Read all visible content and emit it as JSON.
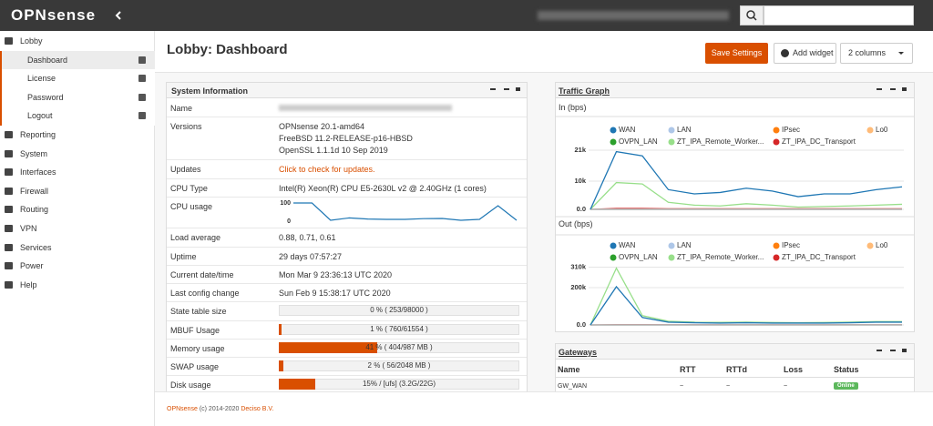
{
  "topbar": {
    "logo": "OPNsense"
  },
  "menu": {
    "active": "Dashboard",
    "items": [
      {
        "label": "Lobby",
        "children": [
          "Dashboard",
          "License",
          "Password",
          "Logout"
        ]
      },
      {
        "label": "Reporting"
      },
      {
        "label": "System"
      },
      {
        "label": "Interfaces"
      },
      {
        "label": "Firewall"
      },
      {
        "label": "Routing"
      },
      {
        "label": "VPN"
      },
      {
        "label": "Services"
      },
      {
        "label": "Power"
      },
      {
        "label": "Help"
      }
    ]
  },
  "header": {
    "title": "Lobby: Dashboard",
    "save": "Save Settings",
    "add": "Add widget",
    "columns": "2 columns"
  },
  "system_information": {
    "title": "System Information",
    "rows": [
      {
        "label": "Name"
      },
      {
        "label": "Versions",
        "lines": [
          "OPNsense 20.1-amd64",
          "FreeBSD 11.2-RELEASE-p16-HBSD",
          "OpenSSL 1.1.1d 10 Sep 2019"
        ]
      },
      {
        "label": "Updates",
        "link": "Click to check for updates."
      },
      {
        "label": "CPU Type",
        "value": "Intel(R) Xeon(R) CPU E5-2630L v2 @ 2.40GHz (1 cores)"
      },
      {
        "label": "CPU usage",
        "chart": {
          "type": "line",
          "ylim": [
            0,
            100
          ],
          "yticks": [
            0,
            100
          ],
          "color": "#1f77b4",
          "values": [
            100,
            100,
            5,
            18,
            12,
            10,
            10,
            14,
            15,
            5,
            10,
            85,
            5
          ]
        }
      },
      {
        "label": "Load average",
        "value": "0.88, 0.71, 0.61"
      },
      {
        "label": "Uptime",
        "value": "29 days 07:57:27"
      },
      {
        "label": "Current date/time",
        "value": "Mon Mar 9 23:36:13 UTC 2020"
      },
      {
        "label": "Last config change",
        "value": "Sun Feb 9 15:38:17 UTC 2020"
      },
      {
        "label": "State table size",
        "value": "0 % ( 253/98000 )",
        "percent": 0
      },
      {
        "label": "MBUF Usage",
        "value": "1 % ( 760/61554 )",
        "percent": 1
      },
      {
        "label": "Memory usage",
        "value": "41 % ( 404/987 MB )",
        "percent": 41
      },
      {
        "label": "SWAP usage",
        "value": "2 % ( 56/2048 MB )",
        "percent": 2
      },
      {
        "label": "Disk usage",
        "value": "15% / [ufs] (3.2G/22G)",
        "percent": 15
      }
    ]
  },
  "traffic_graph": {
    "title": "Traffic Graph",
    "charts": [
      {
        "type": "line",
        "title": "In (bps)",
        "ylim": [
          0,
          21000
        ],
        "yticks": [
          {
            "value": 0,
            "label": "0.0"
          },
          {
            "value": 10000,
            "label": "10k"
          },
          {
            "value": 21000,
            "label": "21k"
          }
        ],
        "series": [
          {
            "name": "WAN",
            "color": "#1f77b4",
            "values": [
              0,
              20500,
              19000,
              7000,
              5500,
              6000,
              7500,
              6500,
              4500,
              5500,
              5500,
              7000,
              8000
            ]
          },
          {
            "name": "LAN",
            "color": "#aec7e8",
            "values": [
              0,
              0,
              0,
              0,
              0,
              0,
              0,
              0,
              0,
              0,
              0,
              0,
              0
            ]
          },
          {
            "name": "IPsec",
            "color": "#ff7f0e",
            "values": [
              0,
              0,
              0,
              0,
              0,
              0,
              0,
              0,
              0,
              0,
              0,
              0,
              0
            ]
          },
          {
            "name": "Lo0",
            "color": "#ffbb78",
            "values": [
              0,
              0,
              0,
              0,
              0,
              0,
              0,
              0,
              0,
              0,
              0,
              0,
              0
            ]
          },
          {
            "name": "OVPN_LAN",
            "color": "#2ca02c",
            "values": [
              0,
              0,
              0,
              0,
              0,
              0,
              0,
              0,
              0,
              0,
              0,
              0,
              0
            ]
          },
          {
            "name": "ZT_IPA_Remote_Worker...",
            "color": "#98df8a",
            "values": [
              0,
              9500,
              9000,
              2500,
              1500,
              1200,
              2000,
              1500,
              800,
              1000,
              1200,
              1500,
              1800
            ]
          },
          {
            "name": "ZT_IPA_DC_Transport",
            "color": "#d62728",
            "values": [
              0,
              300,
              300,
              200,
              200,
              200,
              200,
              200,
              200,
              200,
              200,
              200,
              200
            ]
          }
        ]
      },
      {
        "type": "line",
        "title": "Out (bps)",
        "ylim": [
          0,
          310000
        ],
        "yticks": [
          {
            "value": 0,
            "label": "0.0"
          },
          {
            "value": 200000,
            "label": "200k"
          },
          {
            "value": 310000,
            "label": "310k"
          }
        ],
        "series": [
          {
            "name": "WAN",
            "color": "#1f77b4",
            "values": [
              0,
              205000,
              40000,
              15000,
              12000,
              10000,
              12000,
              10000,
              10000,
              10000,
              12000,
              15000,
              15000
            ]
          },
          {
            "name": "LAN",
            "color": "#aec7e8",
            "values": [
              0,
              0,
              0,
              0,
              0,
              0,
              0,
              0,
              0,
              0,
              0,
              0,
              0
            ]
          },
          {
            "name": "IPsec",
            "color": "#ff7f0e",
            "values": [
              0,
              0,
              0,
              0,
              0,
              0,
              0,
              0,
              0,
              0,
              0,
              0,
              0
            ]
          },
          {
            "name": "Lo0",
            "color": "#ffbb78",
            "values": [
              0,
              0,
              0,
              0,
              0,
              0,
              0,
              0,
              0,
              0,
              0,
              0,
              0
            ]
          },
          {
            "name": "OVPN_LAN",
            "color": "#2ca02c",
            "values": [
              0,
              0,
              0,
              0,
              0,
              0,
              0,
              0,
              0,
              0,
              0,
              0,
              0
            ]
          },
          {
            "name": "ZT_IPA_Remote_Worker...",
            "color": "#98df8a",
            "values": [
              0,
              305000,
              50000,
              20000,
              15000,
              14000,
              15000,
              13000,
              12000,
              13000,
              15000,
              18000,
              18000
            ]
          },
          {
            "name": "ZT_IPA_DC_Transport",
            "color": "#d62728",
            "values": [
              0,
              2000,
              2000,
              1000,
              1000,
              1000,
              1000,
              1000,
              1000,
              1000,
              1000,
              1000,
              1000
            ]
          }
        ]
      }
    ]
  },
  "gateways": {
    "title": "Gateways",
    "columns": [
      "Name",
      "RTT",
      "RTTd",
      "Loss",
      "Status"
    ],
    "rows": [
      [
        "GW_WAN",
        "~",
        "~",
        "~",
        "Online"
      ]
    ]
  },
  "footer": {
    "brand": "OPNsense",
    "text": "(c) 2014-2020",
    "company": "Deciso B.V."
  }
}
